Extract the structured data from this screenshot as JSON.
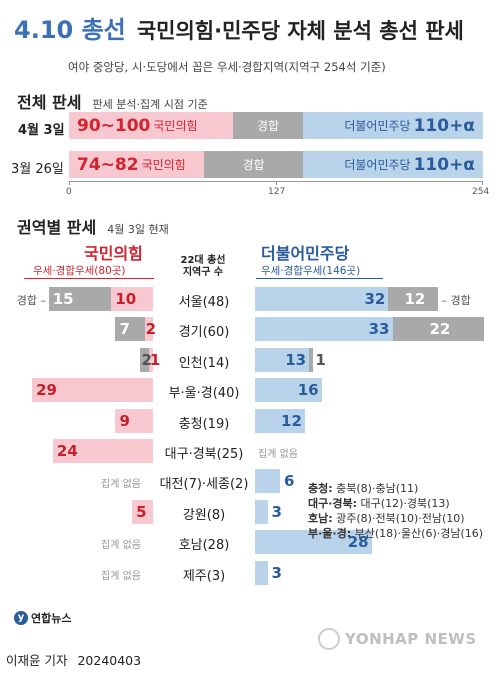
{
  "title": {
    "prefix": "4.10 총선",
    "main": "국민의힘·민주당 자체 분석 총선 판세"
  },
  "subtitle": "여야 중앙당, 시·도당에서 꼽은 우세·경합지역(지역구 254석 기준)",
  "overall": {
    "section_title": "전체 판세",
    "section_sub": "판세 분석·집계 시점 기준",
    "rows": [
      {
        "date": "4월 3일",
        "ppp_range": "90~100",
        "ppp_label": "국민의힘",
        "tossup_label": "경합",
        "dem_label": "더불어민주당",
        "dem_value": "110+α",
        "ppp_end": 100,
        "dem_start": 144
      },
      {
        "date": "3월 26일",
        "ppp_range": "74~82",
        "ppp_label": "국민의힘",
        "tossup_label": "경합",
        "dem_label": "더불어민주당",
        "dem_value": "110+α",
        "ppp_end": 82,
        "dem_start": 144
      }
    ],
    "axis_ticks": [
      "0",
      "127",
      "254"
    ],
    "axis_max": 254
  },
  "regional": {
    "section_title": "권역별 판세",
    "section_sub": "4월 3일 현재",
    "left_party": "국민의힘",
    "left_sub": "우세·경합우세(80곳)",
    "right_party": "더불어민주당",
    "right_sub": "우세·경합우세(146곳)",
    "center_head_1": "22대 총선",
    "center_head_2": "지역구 수",
    "tossup_word": "경합",
    "nodata_label": "집계 없음",
    "notes": [
      {
        "key": "충청:",
        "text": " 충북(8)·충남(11)"
      },
      {
        "key": "대구·경북:",
        "text": " 대구(12)·경북(13)"
      },
      {
        "key": "호남:",
        "text": " 광주(8)·전북(10)·전남(10)"
      },
      {
        "key": "부·울·경:",
        "text": " 부산(18)·울산(6)·경남(16)"
      }
    ]
  },
  "chart_data": {
    "type": "bar",
    "categories": [
      "서울(48)",
      "경기(60)",
      "인천(14)",
      "부·울·경(40)",
      "충청(19)",
      "대구·경북(25)",
      "대전(7)·세종(2)",
      "강원(8)",
      "호남(28)",
      "제주(3)"
    ],
    "series": [
      {
        "name": "국민의힘",
        "values": [
          10,
          2,
          1,
          29,
          9,
          24,
          null,
          5,
          null,
          null
        ]
      },
      {
        "name": "국민의힘 경합",
        "values": [
          15,
          7,
          2,
          null,
          null,
          null,
          null,
          null,
          null,
          null
        ]
      },
      {
        "name": "더불어민주당",
        "values": [
          32,
          33,
          13,
          16,
          12,
          null,
          6,
          3,
          28,
          3
        ]
      },
      {
        "name": "더불어민주당 경합",
        "values": [
          12,
          22,
          1,
          null,
          null,
          null,
          null,
          null,
          null,
          null
        ]
      }
    ],
    "overall": {
      "categories": [
        "4월 3일",
        "3월 26일"
      ],
      "ppp": [
        "90~100",
        "74~82"
      ],
      "dem": [
        "110+α",
        "110+α"
      ],
      "xlim": [
        0,
        254
      ]
    }
  },
  "footer": {
    "logo": "연합뉴스",
    "watermark": "YONHAP NEWS",
    "byline": "이재윤 기자",
    "date": "20240403"
  },
  "colors": {
    "ppp": "#f7c8d0",
    "dem": "#b9d4ea",
    "tossup": "#a9a9a9",
    "red": "#d0242f",
    "blue": "#2a5b9a"
  }
}
